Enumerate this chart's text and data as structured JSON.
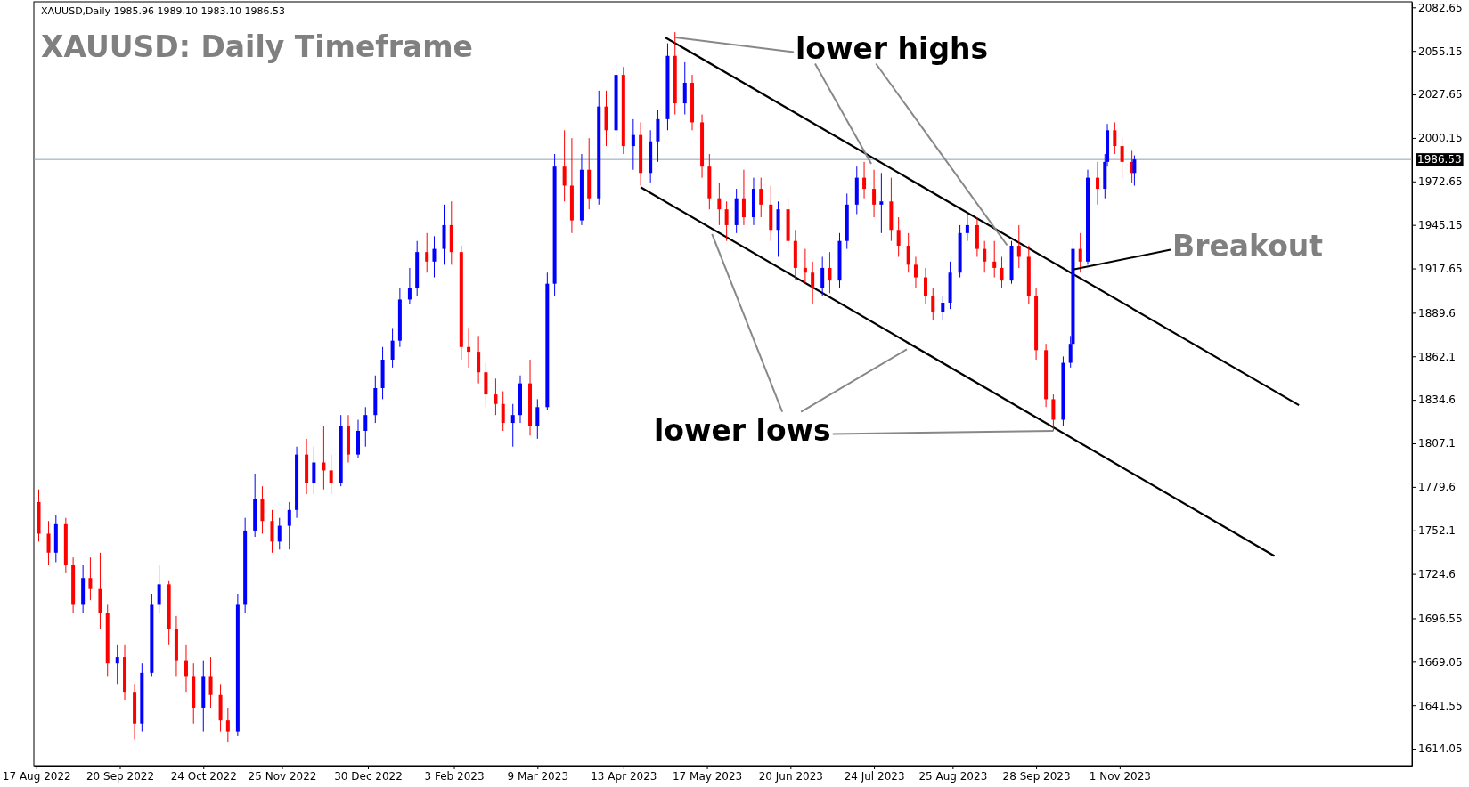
{
  "chart_data": {
    "type": "candlestick",
    "title": "XAUUSD: Daily Timeframe",
    "subtitle": "XAUUSD,Daily  1985.96 1989.10 1983.10 1986.53",
    "annotations": [
      {
        "text": "lower highs",
        "x": "2023-05-04",
        "y": 2063.7
      },
      {
        "text": "lower lows",
        "x": "2023-10-05",
        "y": 1815
      },
      {
        "text": "Breakout",
        "x": "2023-10-13",
        "y": 1917
      }
    ],
    "colors": [
      "#ff0000",
      "#ff0000",
      "#0000ff",
      "#ff0000",
      "#ff0000",
      "#0000ff",
      "#ff0000",
      "#ff0000",
      "#ff0000",
      "#0000ff",
      "#ff0000",
      "#ff0000",
      "#0000ff",
      "#0000ff",
      "#0000ff",
      "#ff0000",
      "#ff0000",
      "#ff0000",
      "#ff0000",
      "#0000ff",
      "#ff0000",
      "#ff0000",
      "#ff0000",
      "#0000ff",
      "#0000ff",
      "#0000ff",
      "#ff0000",
      "#ff0000",
      "#0000ff",
      "#0000ff",
      "#0000ff",
      "#ff0000",
      "#0000ff",
      "#ff0000",
      "#ff0000",
      "#0000ff",
      "#ff0000",
      "#0000ff",
      "#0000ff",
      "#0000ff",
      "#0000ff",
      "#0000ff",
      "#0000ff",
      "#0000ff",
      "#0000ff",
      "#ff0000",
      "#0000ff",
      "#0000ff",
      "#ff0000",
      "#ff0000",
      "#ff0000",
      "#ff0000",
      "#ff0000",
      "#ff0000",
      "#ff0000",
      "#0000ff",
      "#0000ff",
      "#ff0000",
      "#0000ff",
      "#0000ff",
      "#0000ff",
      "#ff0000",
      "#ff0000",
      "#0000ff",
      "#ff0000",
      "#0000ff",
      "#ff0000",
      "#0000ff",
      "#ff0000",
      "#0000ff",
      "#ff0000",
      "#0000ff",
      "#0000ff",
      "#0000ff",
      "#ff0000",
      "#0000ff",
      "#ff0000",
      "#ff0000",
      "#ff0000",
      "#ff0000",
      "#ff0000",
      "#0000ff",
      "#ff0000",
      "#0000ff",
      "#ff0000",
      "#ff0000",
      "#0000ff",
      "#ff0000",
      "#ff0000",
      "#ff0000",
      "#ff0000",
      "#0000ff",
      "#ff0000",
      "#0000ff",
      "#0000ff",
      "#0000ff",
      "#ff0000",
      "#ff0000",
      "#0000ff",
      "#ff0000",
      "#ff0000",
      "#ff0000",
      "#ff0000",
      "#ff0000",
      "#ff0000",
      "#0000ff",
      "#0000ff",
      "#0000ff",
      "#0000ff",
      "#ff0000",
      "#ff0000",
      "#ff0000",
      "#ff0000",
      "#0000ff",
      "#ff0000",
      "#ff0000",
      "#ff0000",
      "#ff0000",
      "#ff0000",
      "#0000ff",
      "#0000ff",
      "#0000ff",
      "#ff0000",
      "#0000ff",
      "#ff0000",
      "#0000ff",
      "#0000ff",
      "#ff0000",
      "#ff0000",
      "#ff0000",
      "#0000ff"
    ],
    "xlim": [
      "2022-08-16",
      "2024-02-28"
    ],
    "xticks": [
      {
        "value": "2022-08-17",
        "label": "17 Aug 2022"
      },
      {
        "value": "2022-09-20",
        "label": "20 Sep 2022"
      },
      {
        "value": "2022-10-24",
        "label": "24 Oct 2022"
      },
      {
        "value": "2022-11-25",
        "label": "25 Nov 2022"
      },
      {
        "value": "2022-12-30",
        "label": "30 Dec 2022"
      },
      {
        "value": "2023-02-03",
        "label": "3 Feb 2023"
      },
      {
        "value": "2023-03-09",
        "label": "9 Mar 2023"
      },
      {
        "value": "2023-04-13",
        "label": "13 Apr 2023"
      },
      {
        "value": "2023-05-17",
        "label": "17 May 2023"
      },
      {
        "value": "2023-06-20",
        "label": "20 Jun 2023"
      },
      {
        "value": "2023-07-24",
        "label": "24 Jul 2023"
      },
      {
        "value": "2023-08-25",
        "label": "25 Aug 2023"
      },
      {
        "value": "2023-09-28",
        "label": "28 Sep 2023"
      },
      {
        "value": "2023-11-01",
        "label": "1 Nov 2023"
      }
    ],
    "ylim": [
      1603.4,
      2086.2
    ],
    "yticks": [
      1614.05,
      1641.55,
      1669.05,
      1696.55,
      1724.6,
      1752.1,
      1779.6,
      1807.1,
      1834.6,
      1862.1,
      1889.6,
      1917.65,
      1945.15,
      1972.65,
      2000.15,
      2027.65,
      2055.15,
      2082.65
    ],
    "ref_lines": [
      {
        "axis": "y",
        "value": 1986.53,
        "label": "1986.53",
        "color": "#8ea0b4"
      }
    ],
    "x": [
      "2022-08-18",
      "2022-08-22",
      "2022-08-25",
      "2022-08-29",
      "2022-09-01",
      "2022-09-05",
      "2022-09-08",
      "2022-09-12",
      "2022-09-15",
      "2022-09-19",
      "2022-09-22",
      "2022-09-26",
      "2022-09-29",
      "2022-10-03",
      "2022-10-06",
      "2022-10-10",
      "2022-10-13",
      "2022-10-17",
      "2022-10-20",
      "2022-10-24",
      "2022-10-27",
      "2022-10-31",
      "2022-11-03",
      "2022-11-07",
      "2022-11-10",
      "2022-11-14",
      "2022-11-17",
      "2022-11-21",
      "2022-11-24",
      "2022-11-28",
      "2022-12-01",
      "2022-12-05",
      "2022-12-08",
      "2022-12-12",
      "2022-12-15",
      "2022-12-19",
      "2022-12-22",
      "2022-12-26",
      "2022-12-29",
      "2023-01-02",
      "2023-01-05",
      "2023-01-09",
      "2023-01-12",
      "2023-01-16",
      "2023-01-19",
      "2023-01-23",
      "2023-01-26",
      "2023-01-30",
      "2023-02-02",
      "2023-02-06",
      "2023-02-09",
      "2023-02-13",
      "2023-02-16",
      "2023-02-20",
      "2023-02-23",
      "2023-02-27",
      "2023-03-02",
      "2023-03-06",
      "2023-03-09",
      "2023-03-13",
      "2023-03-16",
      "2023-03-20",
      "2023-03-23",
      "2023-03-27",
      "2023-03-30",
      "2023-04-03",
      "2023-04-06",
      "2023-04-10",
      "2023-04-13",
      "2023-04-17",
      "2023-04-20",
      "2023-04-24",
      "2023-04-27",
      "2023-05-01",
      "2023-05-04",
      "2023-05-08",
      "2023-05-11",
      "2023-05-15",
      "2023-05-18",
      "2023-05-22",
      "2023-05-25",
      "2023-05-29",
      "2023-06-01",
      "2023-06-05",
      "2023-06-08",
      "2023-06-12",
      "2023-06-15",
      "2023-06-19",
      "2023-06-22",
      "2023-06-26",
      "2023-06-29",
      "2023-07-03",
      "2023-07-06",
      "2023-07-10",
      "2023-07-13",
      "2023-07-17",
      "2023-07-20",
      "2023-07-24",
      "2023-07-27",
      "2023-07-31",
      "2023-08-03",
      "2023-08-07",
      "2023-08-10",
      "2023-08-14",
      "2023-08-17",
      "2023-08-21",
      "2023-08-24",
      "2023-08-28",
      "2023-08-31",
      "2023-09-04",
      "2023-09-07",
      "2023-09-11",
      "2023-09-14",
      "2023-09-18",
      "2023-09-21",
      "2023-09-25",
      "2023-09-28",
      "2023-10-02",
      "2023-10-05",
      "2023-10-09",
      "2023-10-12",
      "2023-10-13",
      "2023-10-16",
      "2023-10-19",
      "2023-10-23",
      "2023-10-26",
      "2023-10-27",
      "2023-10-30",
      "2023-11-02",
      "2023-11-06",
      "2023-11-07"
    ],
    "ohlc": [
      [
        1770,
        1778,
        1745,
        1750
      ],
      [
        1750,
        1758,
        1730,
        1738
      ],
      [
        1738,
        1762,
        1732,
        1756
      ],
      [
        1756,
        1760,
        1725,
        1730
      ],
      [
        1730,
        1735,
        1700,
        1705
      ],
      [
        1705,
        1730,
        1700,
        1722
      ],
      [
        1722,
        1735,
        1708,
        1715
      ],
      [
        1715,
        1738,
        1690,
        1700
      ],
      [
        1700,
        1705,
        1660,
        1668
      ],
      [
        1668,
        1680,
        1655,
        1672
      ],
      [
        1672,
        1680,
        1645,
        1650
      ],
      [
        1650,
        1655,
        1620,
        1630
      ],
      [
        1630,
        1668,
        1625,
        1662
      ],
      [
        1662,
        1712,
        1660,
        1705
      ],
      [
        1705,
        1730,
        1700,
        1718
      ],
      [
        1718,
        1720,
        1680,
        1690
      ],
      [
        1690,
        1698,
        1660,
        1670
      ],
      [
        1670,
        1680,
        1650,
        1660
      ],
      [
        1660,
        1668,
        1630,
        1640
      ],
      [
        1640,
        1670,
        1625,
        1660
      ],
      [
        1660,
        1672,
        1640,
        1648
      ],
      [
        1648,
        1655,
        1625,
        1632
      ],
      [
        1632,
        1640,
        1618,
        1625
      ],
      [
        1625,
        1712,
        1622,
        1705
      ],
      [
        1705,
        1760,
        1700,
        1752
      ],
      [
        1752,
        1788,
        1748,
        1772
      ],
      [
        1772,
        1780,
        1750,
        1758
      ],
      [
        1758,
        1765,
        1738,
        1745
      ],
      [
        1745,
        1760,
        1740,
        1755
      ],
      [
        1755,
        1770,
        1740,
        1765
      ],
      [
        1765,
        1805,
        1760,
        1800
      ],
      [
        1800,
        1810,
        1775,
        1782
      ],
      [
        1782,
        1805,
        1775,
        1795
      ],
      [
        1795,
        1818,
        1778,
        1790
      ],
      [
        1790,
        1800,
        1775,
        1782
      ],
      [
        1782,
        1825,
        1780,
        1818
      ],
      [
        1818,
        1825,
        1795,
        1800
      ],
      [
        1800,
        1822,
        1798,
        1815
      ],
      [
        1815,
        1830,
        1805,
        1825
      ],
      [
        1825,
        1850,
        1820,
        1842
      ],
      [
        1842,
        1868,
        1835,
        1860
      ],
      [
        1860,
        1880,
        1855,
        1872
      ],
      [
        1872,
        1905,
        1868,
        1898
      ],
      [
        1898,
        1918,
        1895,
        1905
      ],
      [
        1905,
        1935,
        1900,
        1928
      ],
      [
        1928,
        1940,
        1915,
        1922
      ],
      [
        1922,
        1938,
        1912,
        1930
      ],
      [
        1930,
        1958,
        1920,
        1945
      ],
      [
        1945,
        1960,
        1920,
        1928
      ],
      [
        1928,
        1932,
        1860,
        1868
      ],
      [
        1868,
        1880,
        1855,
        1865
      ],
      [
        1865,
        1875,
        1845,
        1852
      ],
      [
        1852,
        1858,
        1830,
        1838
      ],
      [
        1838,
        1848,
        1825,
        1832
      ],
      [
        1832,
        1840,
        1815,
        1820
      ],
      [
        1820,
        1832,
        1805,
        1825
      ],
      [
        1825,
        1850,
        1820,
        1845
      ],
      [
        1845,
        1860,
        1812,
        1818
      ],
      [
        1818,
        1835,
        1810,
        1830
      ],
      [
        1830,
        1915,
        1828,
        1908
      ],
      [
        1908,
        1990,
        1900,
        1982
      ],
      [
        1982,
        2005,
        1960,
        1970
      ],
      [
        1970,
        2000,
        1940,
        1948
      ],
      [
        1948,
        1990,
        1945,
        1980
      ],
      [
        1980,
        2000,
        1955,
        1962
      ],
      [
        1962,
        2030,
        1958,
        2020
      ],
      [
        2020,
        2030,
        1995,
        2005
      ],
      [
        2005,
        2048,
        1995,
        2040
      ],
      [
        2040,
        2045,
        1990,
        1995
      ],
      [
        1995,
        2012,
        1980,
        2002
      ],
      [
        2002,
        2010,
        1970,
        1978
      ],
      [
        1978,
        2005,
        1972,
        1998
      ],
      [
        1998,
        2018,
        1985,
        2012
      ],
      [
        2012,
        2060,
        2005,
        2052
      ],
      [
        2052,
        2067,
        2015,
        2022
      ],
      [
        2022,
        2048,
        2015,
        2035
      ],
      [
        2035,
        2040,
        2005,
        2010
      ],
      [
        2010,
        2015,
        1975,
        1982
      ],
      [
        1982,
        1990,
        1955,
        1962
      ],
      [
        1962,
        1972,
        1945,
        1955
      ],
      [
        1955,
        1960,
        1935,
        1945
      ],
      [
        1945,
        1968,
        1940,
        1962
      ],
      [
        1962,
        1980,
        1945,
        1950
      ],
      [
        1950,
        1975,
        1945,
        1968
      ],
      [
        1968,
        1975,
        1950,
        1958
      ],
      [
        1958,
        1970,
        1935,
        1942
      ],
      [
        1942,
        1960,
        1925,
        1955
      ],
      [
        1955,
        1962,
        1930,
        1935
      ],
      [
        1935,
        1942,
        1910,
        1918
      ],
      [
        1918,
        1930,
        1908,
        1915
      ],
      [
        1915,
        1922,
        1895,
        1905
      ],
      [
        1905,
        1925,
        1900,
        1918
      ],
      [
        1918,
        1928,
        1902,
        1910
      ],
      [
        1910,
        1940,
        1905,
        1935
      ],
      [
        1935,
        1965,
        1930,
        1958
      ],
      [
        1958,
        1982,
        1952,
        1975
      ],
      [
        1975,
        1985,
        1962,
        1968
      ],
      [
        1968,
        1980,
        1950,
        1958
      ],
      [
        1958,
        1978,
        1940,
        1960
      ],
      [
        1960,
        1975,
        1935,
        1942
      ],
      [
        1942,
        1950,
        1925,
        1932
      ],
      [
        1932,
        1940,
        1915,
        1920
      ],
      [
        1920,
        1925,
        1905,
        1912
      ],
      [
        1912,
        1918,
        1895,
        1900
      ],
      [
        1900,
        1905,
        1885,
        1890
      ],
      [
        1890,
        1900,
        1885,
        1896
      ],
      [
        1896,
        1922,
        1892,
        1915
      ],
      [
        1915,
        1945,
        1912,
        1940
      ],
      [
        1940,
        1952,
        1935,
        1945
      ],
      [
        1945,
        1950,
        1925,
        1930
      ],
      [
        1930,
        1935,
        1915,
        1922
      ],
      [
        1922,
        1935,
        1912,
        1918
      ],
      [
        1918,
        1925,
        1905,
        1910
      ],
      [
        1910,
        1935,
        1908,
        1932
      ],
      [
        1932,
        1945,
        1918,
        1925
      ],
      [
        1925,
        1932,
        1895,
        1900
      ],
      [
        1900,
        1905,
        1860,
        1866
      ],
      [
        1866,
        1870,
        1830,
        1835
      ],
      [
        1835,
        1838,
        1815,
        1822
      ],
      [
        1822,
        1862,
        1818,
        1858
      ],
      [
        1858,
        1875,
        1855,
        1870
      ],
      [
        1870,
        1935,
        1868,
        1930
      ],
      [
        1930,
        1940,
        1915,
        1922
      ],
      [
        1922,
        1980,
        1920,
        1975
      ],
      [
        1975,
        1985,
        1958,
        1968
      ],
      [
        1968,
        1990,
        1962,
        1985
      ],
      [
        1985,
        2009,
        1982,
        2005
      ],
      [
        2005,
        2010,
        1990,
        1995
      ],
      [
        1995,
        2000,
        1975,
        1985
      ],
      [
        1985,
        1992,
        1972,
        1978
      ],
      [
        1978,
        1989.1,
        1970,
        1986.53
      ]
    ],
    "series": [
      {
        "type": "line",
        "color": "#000000",
        "x": [
          "2023-04-30",
          "2024-01-13"
        ],
        "values": [
          2063.7,
          1831.2
        ]
      },
      {
        "type": "line",
        "color": "#000000",
        "x": [
          "2023-04-20",
          "2024-01-03"
        ],
        "values": [
          1969.0,
          1735.9
        ]
      }
    ]
  }
}
